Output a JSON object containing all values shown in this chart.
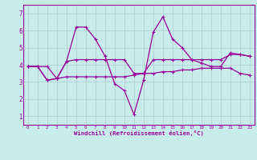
{
  "line1_x": [
    0,
    1,
    2,
    3,
    4,
    5,
    6,
    7,
    8,
    9,
    10,
    11,
    12,
    13,
    14,
    15,
    16,
    17,
    18,
    19,
    20,
    21,
    22,
    23
  ],
  "line1_y": [
    3.9,
    3.9,
    3.1,
    3.2,
    4.2,
    6.2,
    6.2,
    5.5,
    4.5,
    2.9,
    2.5,
    1.1,
    3.1,
    5.9,
    6.8,
    5.5,
    5.0,
    4.3,
    4.1,
    3.9,
    3.9,
    4.7,
    4.6,
    4.5
  ],
  "line2_x": [
    0,
    1,
    2,
    3,
    4,
    5,
    6,
    7,
    8,
    9,
    10,
    11,
    12,
    13,
    14,
    15,
    16,
    17,
    18,
    19,
    20,
    21,
    22,
    23
  ],
  "line2_y": [
    3.9,
    3.9,
    3.9,
    3.2,
    4.2,
    4.3,
    4.3,
    4.3,
    4.3,
    4.3,
    4.3,
    3.5,
    3.5,
    4.3,
    4.3,
    4.3,
    4.3,
    4.3,
    4.3,
    4.3,
    4.3,
    4.6,
    4.6,
    4.5
  ],
  "line3_x": [
    0,
    1,
    2,
    3,
    4,
    5,
    6,
    7,
    8,
    9,
    10,
    11,
    12,
    13,
    14,
    15,
    16,
    17,
    18,
    19,
    20,
    21,
    22,
    23
  ],
  "line3_y": [
    3.9,
    3.9,
    3.1,
    3.2,
    3.3,
    3.3,
    3.3,
    3.3,
    3.3,
    3.3,
    3.3,
    3.4,
    3.5,
    3.5,
    3.6,
    3.6,
    3.7,
    3.7,
    3.8,
    3.8,
    3.8,
    3.8,
    3.5,
    3.4
  ],
  "color": "#990099",
  "bg_color": "#c8ecec",
  "grid_color": "#b0cccc",
  "xlabel": "Windchill (Refroidissement éolien,°C)",
  "xlim": [
    -0.5,
    23.5
  ],
  "ylim": [
    0.5,
    7.5
  ],
  "xticks": [
    0,
    1,
    2,
    3,
    4,
    5,
    6,
    7,
    8,
    9,
    10,
    11,
    12,
    13,
    14,
    15,
    16,
    17,
    18,
    19,
    20,
    21,
    22,
    23
  ],
  "yticks": [
    1,
    2,
    3,
    4,
    5,
    6,
    7
  ],
  "fig_width": 3.2,
  "fig_height": 2.0,
  "dpi": 100
}
